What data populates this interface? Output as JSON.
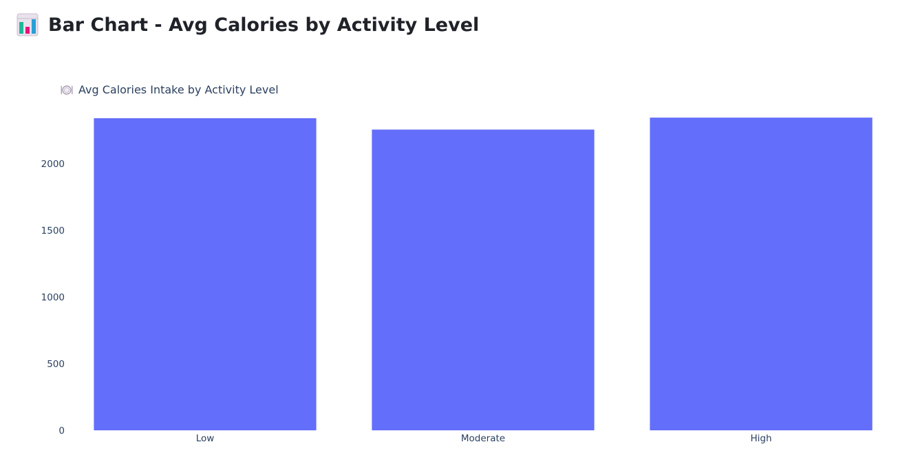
{
  "header": {
    "title": "Bar Chart - Avg Calories by Activity Level",
    "icon": "bar-chart-icon"
  },
  "chart_data": {
    "type": "bar",
    "title": "Avg Calories Intake by Activity Level",
    "title_icon": "plate-cutlery-icon",
    "categories": [
      "Low",
      "Moderate",
      "High"
    ],
    "values": [
      2340,
      2255,
      2345
    ],
    "xlabel": "",
    "ylabel": "",
    "ylim": [
      0,
      2500
    ],
    "yticks": [
      0,
      500,
      1000,
      1500,
      2000
    ],
    "grid": false,
    "bar_color": "#636efa"
  }
}
